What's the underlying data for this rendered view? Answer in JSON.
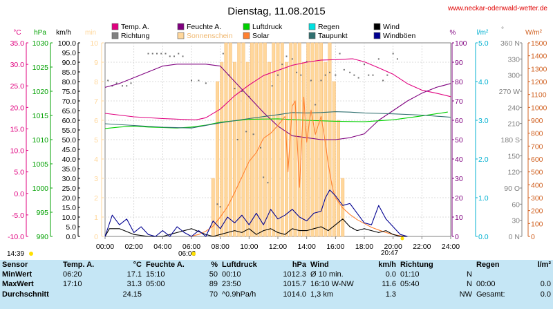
{
  "header": {
    "title": "Dienstag, 11.08.2015",
    "site": "www.neckar-odenwald-wetter.de"
  },
  "sun_events": {
    "sunrise": "06:08",
    "sunset": "20:47",
    "daylength": "14:39"
  },
  "legend": [
    {
      "name": "Temp. A.",
      "color": "#e0007f"
    },
    {
      "name": "Feuchte A.",
      "color": "#7f007f"
    },
    {
      "name": "Luftdruck",
      "color": "#00d000"
    },
    {
      "name": "Regen",
      "color": "#00e0e0"
    },
    {
      "name": "Wind",
      "color": "#000000"
    },
    {
      "name": "Richtung",
      "color": "#808080"
    },
    {
      "name": "Sonnenschein",
      "color": "#ffd79b"
    },
    {
      "name": "Solar",
      "color": "#ff8030"
    },
    {
      "name": "Taupunkt",
      "color": "#307070"
    },
    {
      "name": "Windböen",
      "color": "#000090"
    }
  ],
  "chart_data": {
    "type": "line",
    "title": "Dienstag, 11.08.2015",
    "x_ticks": [
      "00:00",
      "02:00",
      "04:00",
      "06:00",
      "08:00",
      "10:00",
      "12:00",
      "14:00",
      "16:00",
      "18:00",
      "20:00",
      "22:00",
      "24:00"
    ],
    "xlim": [
      0,
      24
    ],
    "axes": {
      "temp": {
        "unit": "°C",
        "color": "#e0007f",
        "ticks": [
          "35.0",
          "30.0",
          "25.0",
          "20.0",
          "15.0",
          "10.0",
          "5.0",
          "0.0",
          "-5.0",
          "-10.0"
        ],
        "ylim": [
          -10,
          35
        ]
      },
      "press": {
        "unit": "hPa",
        "color": "#00a000",
        "ticks": [
          "1030",
          "1025",
          "1020",
          "1015",
          "1010",
          "1005",
          "1000",
          "995",
          "990"
        ],
        "ylim": [
          990,
          1030
        ]
      },
      "wind": {
        "unit": "km/h",
        "color": "#000000",
        "ticks": [
          "100.0",
          "95.0",
          "90.0",
          "85.0",
          "80.0",
          "75.0",
          "70.0",
          "65.0",
          "60.0",
          "55.0",
          "50.0",
          "45.0",
          "40.0",
          "35.0",
          "30.0",
          "25.0",
          "20.0",
          "15.0",
          "10.0",
          "5.0",
          "0.0"
        ],
        "ylim": [
          0,
          100
        ]
      },
      "sun": {
        "unit": "min",
        "color": "#ffd79b",
        "ticks": [
          "10",
          "9",
          "8",
          "7",
          "6",
          "5",
          "4",
          "3",
          "2",
          "1",
          "0"
        ],
        "ylim": [
          0,
          10
        ]
      },
      "humid": {
        "unit": "%",
        "color": "#7f007f",
        "ticks": [
          "100",
          "90",
          "80",
          "70",
          "60",
          "50",
          "40",
          "30",
          "20",
          "10",
          "0"
        ],
        "ylim": [
          0,
          100
        ]
      },
      "rain": {
        "unit": "l/m²",
        "color": "#00b0d0",
        "ticks": [
          "5.0",
          "4.0",
          "3.0",
          "2.0",
          "1.0",
          "0.0"
        ],
        "ylim": [
          0,
          5
        ]
      },
      "dir": {
        "unit": "°",
        "color": "#808080",
        "ticks": [
          "360 N",
          "330",
          "300",
          "270 W",
          "240",
          "210",
          "180 S",
          "150",
          "120",
          "90 O",
          "60",
          "30",
          "0 N"
        ],
        "ylim": [
          0,
          360
        ]
      },
      "solar": {
        "unit": "W/m²",
        "color": "#d06020",
        "ticks": [
          "1500",
          "1400",
          "1300",
          "1200",
          "1100",
          "1000",
          "900",
          "800",
          "700",
          "600",
          "500",
          "400",
          "300",
          "200",
          "100",
          "0"
        ],
        "ylim": [
          0,
          1500
        ]
      }
    },
    "series": [
      {
        "name": "Temp. A.",
        "axis": "temp",
        "x": [
          0,
          2,
          4,
          5.5,
          6.3,
          7,
          8,
          9,
          10,
          11,
          12,
          13,
          14,
          15,
          16,
          17.2,
          18,
          19,
          20,
          21,
          22,
          23,
          24
        ],
        "y": [
          18.6,
          17.8,
          17.4,
          17.2,
          17.1,
          17.6,
          19.6,
          22.7,
          25.2,
          27.4,
          28.6,
          29.8,
          30.5,
          31.0,
          31.1,
          31.3,
          30.6,
          29.2,
          27.7,
          25.5,
          24.0,
          23.3,
          22.5
        ]
      },
      {
        "name": "Feuchte A.",
        "axis": "humid",
        "x": [
          0,
          1,
          2,
          3,
          4,
          5,
          6,
          7,
          8,
          9,
          10,
          11,
          12,
          13,
          14,
          15,
          16,
          17,
          18,
          19,
          20,
          21,
          22,
          23,
          24
        ],
        "y": [
          77,
          79,
          82,
          85,
          88,
          89,
          89,
          89,
          88,
          80,
          72,
          64,
          57,
          52,
          51,
          50,
          50,
          51,
          53,
          60,
          65,
          70,
          74,
          77,
          79
        ]
      },
      {
        "name": "Luftdruck",
        "axis": "press",
        "x": [
          0,
          1,
          2,
          3,
          4,
          5,
          6,
          7,
          8,
          10,
          12,
          14,
          16,
          18,
          20,
          22,
          23.8
        ],
        "y": [
          1012.3,
          1012.6,
          1012.8,
          1012.6,
          1012.5,
          1012.4,
          1012.6,
          1013.0,
          1013.6,
          1014.2,
          1014.3,
          1014.0,
          1013.8,
          1013.7,
          1014.1,
          1014.9,
          1015.7
        ]
      },
      {
        "name": "Taupunkt",
        "axis": "temp",
        "x": [
          0,
          2,
          4,
          6,
          8,
          10,
          12,
          13,
          14,
          15,
          16,
          17,
          18,
          19,
          20,
          22,
          24
        ],
        "y": [
          16.2,
          15.8,
          15.4,
          15.2,
          16.4,
          17.4,
          18.3,
          18.8,
          18.7,
          18.8,
          19.0,
          18.9,
          18.7,
          18.6,
          18.5,
          18.2,
          17.7
        ]
      },
      {
        "name": "Solar",
        "axis": "solar",
        "x": [
          5.9,
          6.5,
          7,
          7.5,
          8,
          8.5,
          9,
          9.5,
          10,
          10.5,
          11,
          11.5,
          12,
          12.5,
          12.7,
          13,
          13.2,
          13.5,
          13.8,
          14,
          14.3,
          14.6,
          15,
          15.3,
          15.5,
          15.8,
          16,
          16.5,
          17,
          17.5,
          18,
          18.5,
          19,
          19.5,
          20,
          20.5,
          20.8
        ],
        "y": [
          0,
          15,
          40,
          80,
          150,
          230,
          340,
          460,
          580,
          650,
          760,
          800,
          860,
          930,
          500,
          1010,
          1050,
          380,
          1080,
          730,
          980,
          790,
          930,
          720,
          560,
          370,
          300,
          220,
          170,
          130,
          100,
          70,
          50,
          30,
          15,
          5,
          0
        ]
      },
      {
        "name": "Wind",
        "axis": "wind",
        "x": [
          0,
          0.3,
          1,
          2,
          3,
          4,
          5,
          6,
          7,
          7.5,
          8,
          8.5,
          9,
          9.5,
          10,
          10.5,
          11,
          11.5,
          12,
          12.5,
          13,
          13.5,
          14,
          14.5,
          15,
          15.5,
          16,
          16.5,
          17,
          17.5,
          18,
          18.5,
          19,
          19.5,
          20,
          20.5,
          21
        ],
        "y": [
          0,
          4,
          4,
          1,
          0,
          0,
          2,
          4,
          1,
          0,
          1,
          2,
          3,
          2,
          4,
          1,
          3,
          4,
          2,
          1,
          4,
          3,
          3,
          4,
          5,
          3,
          6,
          9,
          5,
          3,
          4,
          3,
          2,
          3,
          1,
          0,
          0
        ]
      },
      {
        "name": "Windböen",
        "axis": "wind",
        "x": [
          0,
          0.5,
          1,
          1.5,
          2,
          2.5,
          3,
          3.5,
          4,
          4.5,
          5,
          5.5,
          6,
          6.5,
          7,
          7.5,
          8,
          8.5,
          9,
          9.5,
          10,
          10.5,
          11,
          11.5,
          12,
          12.5,
          13,
          13.5,
          14,
          14.5,
          15,
          15.3,
          15.6,
          16,
          16.5,
          17,
          17.5,
          18,
          18.5,
          19,
          19.5,
          20,
          20.5,
          21
        ],
        "y": [
          0,
          11,
          6,
          9,
          2,
          5,
          1,
          0,
          3,
          0,
          5,
          2,
          0,
          3,
          0,
          8,
          4,
          10,
          7,
          11,
          6,
          12,
          6,
          14,
          9,
          11,
          14,
          10,
          8,
          12,
          13,
          20,
          24,
          21,
          16,
          17,
          12,
          7,
          6,
          16,
          9,
          5,
          1,
          0
        ]
      }
    ],
    "direction_points": {
      "axis": "dir",
      "x": [
        0.2,
        0.5,
        0.8,
        1.2,
        1.5,
        1.8,
        3,
        3.3,
        3.6,
        3.9,
        4.2,
        4.5,
        4.8,
        5.1,
        5.4,
        6,
        6.5,
        7,
        7.8,
        8,
        8.2,
        8.6,
        9,
        9.2,
        9.5,
        9.8,
        10,
        10.3,
        10.8,
        11,
        11.3,
        11.6,
        12,
        12.3,
        12.6,
        13,
        13.3,
        13.6,
        14,
        14.3,
        14.6,
        15,
        15.3,
        15.6,
        16,
        16.3,
        16.6,
        17,
        17.3,
        17.6,
        18,
        18.3,
        18.6,
        19,
        19.3,
        19.6,
        20,
        20.3
      ],
      "y": [
        290,
        280,
        285,
        280,
        280,
        285,
        340,
        340,
        340,
        340,
        340,
        335,
        335,
        340,
        335,
        290,
        290,
        285,
        60,
        55,
        340,
        300,
        275,
        180,
        270,
        195,
        260,
        190,
        165,
        110,
        100,
        280,
        300,
        320,
        335,
        330,
        305,
        300,
        325,
        290,
        245,
        290,
        300,
        305,
        300,
        340,
        310,
        305,
        300,
        295,
        320,
        300,
        300,
        330,
        290,
        300,
        340,
        330
      ]
    },
    "sunshine_bars": {
      "axis": "sun",
      "x": [
        7.5,
        7.8,
        8.1,
        8.4,
        8.7,
        9,
        9.3,
        9.6,
        9.9,
        10.2,
        10.5,
        10.8,
        11.1,
        11.4,
        11.7,
        12,
        12.3,
        12.6,
        12.9,
        13.2,
        13.5,
        13.8,
        14.1,
        14.4,
        14.7,
        15,
        15.3,
        15.6,
        15.9,
        16.2,
        16.5
      ],
      "y": [
        3,
        8,
        9,
        10,
        10,
        9,
        10,
        10,
        9,
        10,
        10,
        10,
        10,
        9,
        10,
        10,
        10,
        9,
        10,
        10,
        10,
        9,
        10,
        10,
        10,
        10,
        9,
        10,
        8,
        6,
        3
      ]
    }
  },
  "stats": {
    "headers": [
      {
        "label": "Sensor",
        "unit": ""
      },
      {
        "label": "Temp. A.",
        "unit": "°C"
      },
      {
        "label": "Feuchte A.",
        "unit": "%"
      },
      {
        "label": "Luftdruck",
        "unit": "hPa"
      },
      {
        "label": "Wind",
        "unit": "km/h"
      },
      {
        "label": "Richtung",
        "unit": ""
      },
      {
        "label": "Regen",
        "unit": "l/m²"
      }
    ],
    "rows": [
      {
        "label": "MinWert",
        "cells": [
          "06:20",
          "17.1",
          "15:10",
          "50",
          "00:10",
          "1012.3",
          "Ø 10 min.",
          "0.0",
          "01:10",
          "N",
          "",
          ""
        ]
      },
      {
        "label": "MaxWert",
        "cells": [
          "17:10",
          "31.3",
          "05:00",
          "89",
          "23:50",
          "1015.7",
          "16:10  W-NW",
          "11.6",
          "05:40",
          "N",
          "00:00",
          "0.0"
        ]
      },
      {
        "label": "Durchschnitt",
        "cells": [
          "",
          "24.15",
          "",
          "70",
          "^0.9hPa/h",
          "1014.0",
          "1,3 km",
          "1.3",
          "",
          "NW",
          "Gesamt:",
          "0.0"
        ]
      }
    ]
  }
}
